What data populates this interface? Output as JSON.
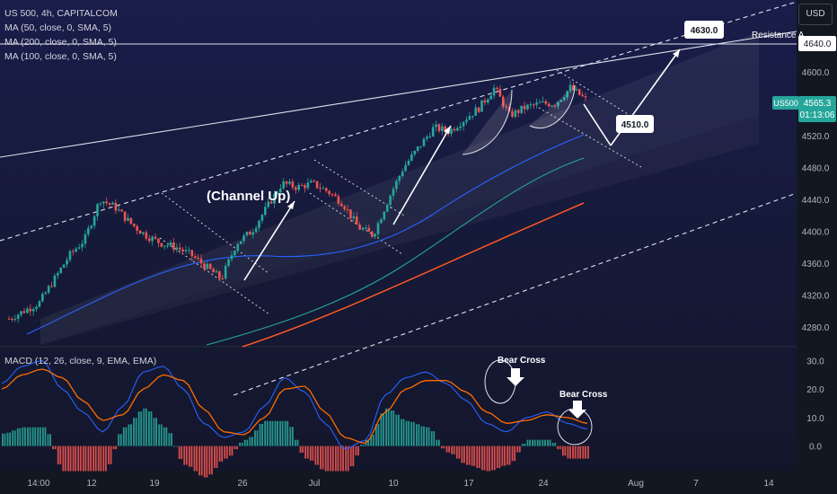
{
  "header": {
    "symbol_line": "US 500, 4h, CAPITALCOM",
    "ma_lines": [
      "MA (50, close, 0, SMA, 5)",
      "MA (200, close, 0, SMA, 5)",
      "MA (100, close, 0, SMA, 5)"
    ],
    "currency_button": "USD"
  },
  "macd_legend": "MACD (12, 26, close, 9, EMA, EMA)",
  "annotations": {
    "channel": "(Channel Up)",
    "target_high": "4630.0",
    "target_low": "4510.0",
    "resistance": "Resistance A",
    "bear_cross_1": "Bear Cross",
    "bear_cross_2": "Bear Cross"
  },
  "price_tags": {
    "resistance_price": "4640.0",
    "symbol_badge": "US500",
    "last_price": "4565.3",
    "countdown": "01:13:06"
  },
  "colors": {
    "up": "#26a69a",
    "down": "#ef5350",
    "ma50": "#2962ff",
    "ma100": "#ff5722",
    "ma200": "#26a69a",
    "macd": "#2962ff",
    "signal": "#ff6d00"
  },
  "chart_data": {
    "type": "candlestick",
    "x_ticks": [
      "14:00",
      "12",
      "19",
      "26",
      "Jul",
      "10",
      "17",
      "24",
      "Aug",
      "7",
      "14"
    ],
    "y_ticks": [
      4280,
      4320,
      4360,
      4400,
      4440,
      4480,
      4520,
      4560,
      4600,
      4640
    ],
    "ylim": [
      4255,
      4690
    ],
    "close_path": [
      4290,
      4300,
      4310,
      4340,
      4370,
      4390,
      4440,
      4430,
      4410,
      4395,
      4385,
      4380,
      4370,
      4355,
      4340,
      4385,
      4400,
      4430,
      4460,
      4455,
      4460,
      4450,
      4435,
      4405,
      4395,
      4440,
      4480,
      4505,
      4530,
      4525,
      4540,
      4555,
      4580,
      4545,
      4555,
      4560,
      4560,
      4580,
      4565
    ],
    "macd_ticks": [
      0,
      10,
      20,
      30
    ],
    "macd_ylim": [
      -8,
      33
    ],
    "macd_line": [
      22,
      28,
      30,
      20,
      12,
      5,
      14,
      26,
      28,
      20,
      8,
      3,
      5,
      14,
      24,
      19,
      8,
      -1,
      2,
      18,
      24,
      26,
      22,
      16,
      8,
      5,
      10,
      12,
      8,
      6
    ],
    "signal_line": [
      20,
      25,
      27,
      24,
      16,
      9,
      11,
      20,
      25,
      23,
      13,
      5,
      4,
      10,
      20,
      21,
      12,
      3,
      1,
      12,
      20,
      23,
      23,
      19,
      12,
      8,
      9,
      11,
      10,
      8
    ]
  }
}
